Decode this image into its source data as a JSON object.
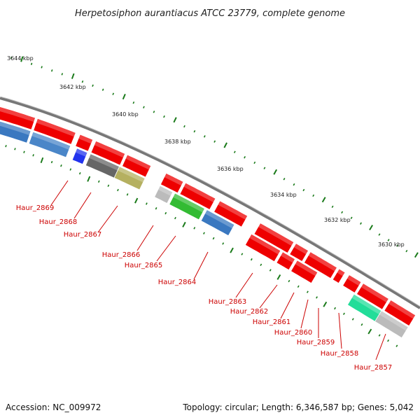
{
  "title": "Herpetosiphon aurantiacus ATCC 23779, complete genome",
  "footer": {
    "accession": "Accession: NC_009972",
    "summary": "Topology: circular; Length: 6,346,587 bp; Genes: 5,042"
  },
  "tick_labels": [
    "3644 kbp",
    "3642 kbp",
    "3640 kbp",
    "3638 kbp",
    "3636 kbp",
    "3634 kbp",
    "3632 kbp",
    "3630 kbp"
  ],
  "genes": [
    {
      "id": "Haur_2869",
      "color": "#3a78c0"
    },
    {
      "id": "Haur_2868",
      "color": "#4a86c8"
    },
    {
      "id": "Haur_2867",
      "color": "#2233ee"
    },
    {
      "id": "Haur_2866",
      "color": "#666666"
    },
    {
      "id": "Haur_2865",
      "color": "#b5b060"
    },
    {
      "id": "Haur_2864",
      "color": "#bbbbbb"
    },
    {
      "id": "Haur_2863",
      "color": "#33bb33"
    },
    {
      "id": "Haur_2862",
      "color": "#3a78c0"
    },
    {
      "id": "Haur_2861",
      "color": "#ee0000"
    },
    {
      "id": "Haur_2860",
      "color": "#ee0000"
    },
    {
      "id": "Haur_2859",
      "color": "#ee0000"
    },
    {
      "id": "Haur_2858",
      "color": "#22dd99"
    },
    {
      "id": "Haur_2857",
      "color": "#bbbbbb"
    }
  ],
  "colors": {
    "cds_strand": "#ee0000",
    "backbone": "#777777",
    "tick": "#1a7a1a",
    "label": "#cc0000"
  }
}
